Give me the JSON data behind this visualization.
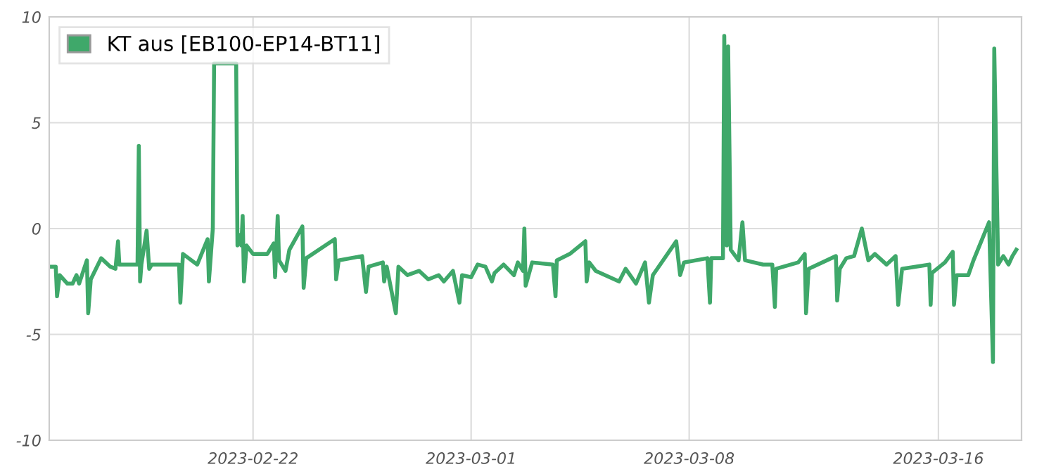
{
  "chart_data": {
    "type": "line",
    "xlim": [
      "2023-02-15T11:00",
      "2023-03-18T16:00"
    ],
    "xticks": [
      "2023-02-22",
      "2023-03-01",
      "2023-03-08",
      "2023-03-16"
    ],
    "ylim": [
      -10,
      10
    ],
    "yticks": [
      -10,
      -5,
      0,
      5,
      10
    ],
    "grid": true,
    "legend": "top left",
    "marker": "none",
    "line_style": "solid",
    "series": [
      {
        "name": "KT aus [EB100-EP14-BT11]",
        "color": "#3fa86a",
        "x": [
          "2023-02-15T11:00",
          "2023-02-15T16:00",
          "2023-02-15T17:00",
          "2023-02-15T19:00",
          "2023-02-16T01:00",
          "2023-02-16T05:00",
          "2023-02-16T08:00",
          "2023-02-16T10:00",
          "2023-02-16T16:00",
          "2023-02-16T17:00",
          "2023-02-16T19:00",
          "2023-02-17T03:00",
          "2023-02-17T10:00",
          "2023-02-17T14:00",
          "2023-02-17T16:00",
          "2023-02-17T17:00",
          "2023-02-18T07:00",
          "2023-02-18T08:00",
          "2023-02-18T09:00",
          "2023-02-18T10:00",
          "2023-02-18T14:00",
          "2023-02-18T16:00",
          "2023-02-18T18:00",
          "2023-02-19T15:00",
          "2023-02-19T16:00",
          "2023-02-19T18:00",
          "2023-02-20T05:00",
          "2023-02-20T13:00",
          "2023-02-20T14:00",
          "2023-02-20T17:00",
          "2023-02-20T18:00",
          "2023-02-21T11:00",
          "2023-02-21T12:00",
          "2023-02-21T14:00",
          "2023-02-21T15:00",
          "2023-02-21T16:00",
          "2023-02-21T17:00",
          "2023-02-21T19:00",
          "2023-02-22T00:00",
          "2023-02-22T11:00",
          "2023-02-22T16:00",
          "2023-02-22T17:00",
          "2023-02-22T19:00",
          "2023-02-22T20:00",
          "2023-02-23T01:00",
          "2023-02-23T04:00",
          "2023-02-23T14:00",
          "2023-02-23T15:00",
          "2023-02-23T17:00",
          "2023-02-24T15:00",
          "2023-02-24T16:00",
          "2023-02-24T18:00",
          "2023-02-25T12:00",
          "2023-02-25T15:00",
          "2023-02-25T17:00",
          "2023-02-26T04:00",
          "2023-02-26T05:00",
          "2023-02-26T07:00",
          "2023-02-26T14:00",
          "2023-02-26T16:00",
          "2023-02-26T23:00",
          "2023-02-27T08:00",
          "2023-02-27T15:00",
          "2023-02-27T23:00",
          "2023-02-28T03:00",
          "2023-02-28T10:00",
          "2023-02-28T15:00",
          "2023-02-28T17:00",
          "2023-03-01T00:00",
          "2023-03-01T05:00",
          "2023-03-01T11:00",
          "2023-03-01T16:00",
          "2023-03-01T18:00",
          "2023-03-02T01:00",
          "2023-03-02T09:00",
          "2023-03-02T12:00",
          "2023-03-02T16:00",
          "2023-03-02T17:00",
          "2023-03-02T18:00",
          "2023-03-02T23:00",
          "2023-03-03T15:00",
          "2023-03-03T17:00",
          "2023-03-03T18:00",
          "2023-03-04T04:00",
          "2023-03-04T16:00",
          "2023-03-04T17:00",
          "2023-03-04T19:00",
          "2023-03-05T00:00",
          "2023-03-05T18:00",
          "2023-03-05T23:00",
          "2023-03-06T07:00",
          "2023-03-06T14:00",
          "2023-03-06T17:00",
          "2023-03-06T20:00",
          "2023-03-07T14:00",
          "2023-03-07T17:00",
          "2023-03-07T20:00",
          "2023-03-08T14:00",
          "2023-03-08T16:00",
          "2023-03-08T17:00",
          "2023-03-09T02:00",
          "2023-03-09T03:00",
          "2023-03-09T05:00",
          "2023-03-09T06:00",
          "2023-03-09T08:00",
          "2023-03-09T14:00",
          "2023-03-09T17:00",
          "2023-03-09T19:00",
          "2023-03-10T09:00",
          "2023-03-10T16:00",
          "2023-03-10T18:00",
          "2023-03-10T19:00",
          "2023-03-11T12:00",
          "2023-03-11T17:00",
          "2023-03-11T18:00",
          "2023-03-11T20:00",
          "2023-03-12T17:00",
          "2023-03-12T18:00",
          "2023-03-12T20:00",
          "2023-03-13T01:00",
          "2023-03-13T07:00",
          "2023-03-13T13:00",
          "2023-03-13T18:00",
          "2023-03-13T23:00",
          "2023-03-14T08:00",
          "2023-03-14T15:00",
          "2023-03-14T17:00",
          "2023-03-14T20:00",
          "2023-03-15T17:00",
          "2023-03-15T18:00",
          "2023-03-15T19:00",
          "2023-03-16T05:00",
          "2023-03-16T11:00",
          "2023-03-16T12:00",
          "2023-03-16T14:00",
          "2023-03-16T23:00",
          "2023-03-17T03:00",
          "2023-03-17T15:00",
          "2023-03-17T18:00",
          "2023-03-17T19:00",
          "2023-03-17T22:00",
          "2023-03-18T02:00",
          "2023-03-18T06:00",
          "2023-03-18T09:00",
          "2023-03-18T12:00"
        ],
        "values": [
          -1.8,
          -1.8,
          -3.2,
          -2.2,
          -2.6,
          -2.6,
          -2.2,
          -2.6,
          -1.5,
          -4.0,
          -2.4,
          -1.4,
          -1.8,
          -1.9,
          -0.6,
          -1.7,
          -1.7,
          3.9,
          -2.5,
          -1.7,
          -0.1,
          -1.9,
          -1.7,
          -1.7,
          -3.5,
          -1.2,
          -1.7,
          -0.5,
          -2.5,
          0.0,
          7.8,
          7.8,
          -0.8,
          -0.3,
          -0.8,
          0.6,
          -2.5,
          -0.8,
          -1.2,
          -1.2,
          -0.7,
          -2.3,
          0.6,
          -1.5,
          -2.0,
          -1.0,
          0.1,
          -2.8,
          -1.4,
          -0.5,
          -2.4,
          -1.5,
          -1.3,
          -3.0,
          -1.8,
          -1.6,
          -2.5,
          -1.8,
          -4.0,
          -1.8,
          -2.2,
          -2.0,
          -2.4,
          -2.2,
          -2.5,
          -2.0,
          -3.5,
          -2.2,
          -2.3,
          -1.7,
          -1.8,
          -2.5,
          -2.1,
          -1.7,
          -2.2,
          -1.6,
          -2.0,
          0.0,
          -2.7,
          -1.6,
          -1.7,
          -3.2,
          -1.5,
          -1.2,
          -0.6,
          -2.5,
          -1.6,
          -2.0,
          -2.5,
          -1.9,
          -2.6,
          -1.6,
          -3.5,
          -2.2,
          -0.6,
          -2.2,
          -1.6,
          -1.4,
          -3.5,
          -1.4,
          -1.4,
          9.1,
          -0.8,
          8.6,
          -1.0,
          -1.5,
          0.3,
          -1.5,
          -1.7,
          -1.7,
          -3.7,
          -1.9,
          -1.6,
          -1.2,
          -4.0,
          -1.9,
          -1.3,
          -3.4,
          -1.9,
          -1.4,
          -1.3,
          0.0,
          -1.5,
          -1.2,
          -1.7,
          -1.3,
          -3.6,
          -1.9,
          -1.7,
          -3.6,
          -2.1,
          -1.6,
          -1.1,
          -3.6,
          -2.2,
          -2.2,
          -1.5,
          0.3,
          -6.3,
          8.5,
          -1.7,
          -1.3,
          -1.7,
          -1.3,
          -1.0
        ]
      }
    ]
  }
}
